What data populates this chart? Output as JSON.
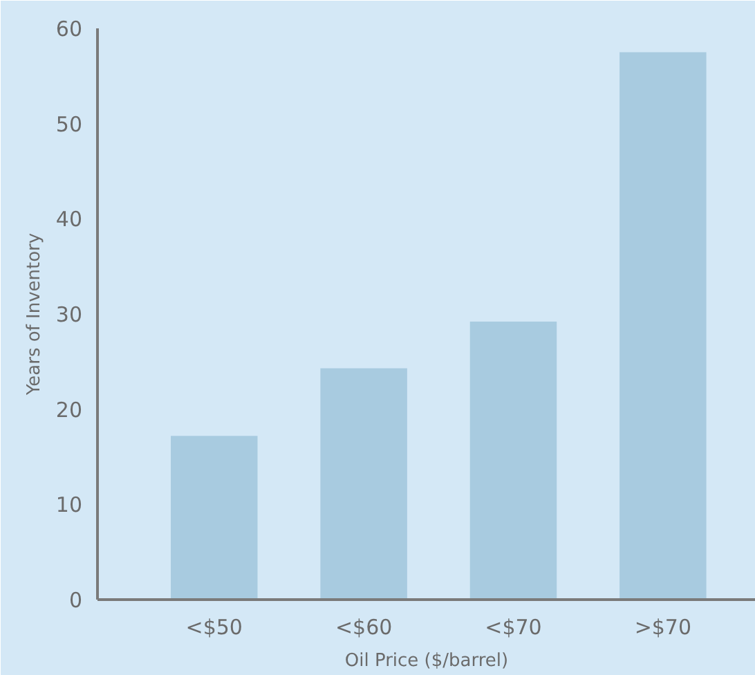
{
  "chart_data": {
    "type": "bar",
    "xlabel": "Oil Price ($/barrel)",
    "ylabel": "Years of Inventory",
    "categories": [
      "<$50",
      "<$60",
      "<$70",
      ">$70"
    ],
    "values": [
      17.2,
      24.3,
      29.2,
      57.5
    ],
    "color": "#a8cbe0",
    "ylim": [
      0,
      60
    ],
    "yticks": [
      0,
      10,
      20,
      30,
      40,
      50,
      60
    ],
    "grid": false
  }
}
